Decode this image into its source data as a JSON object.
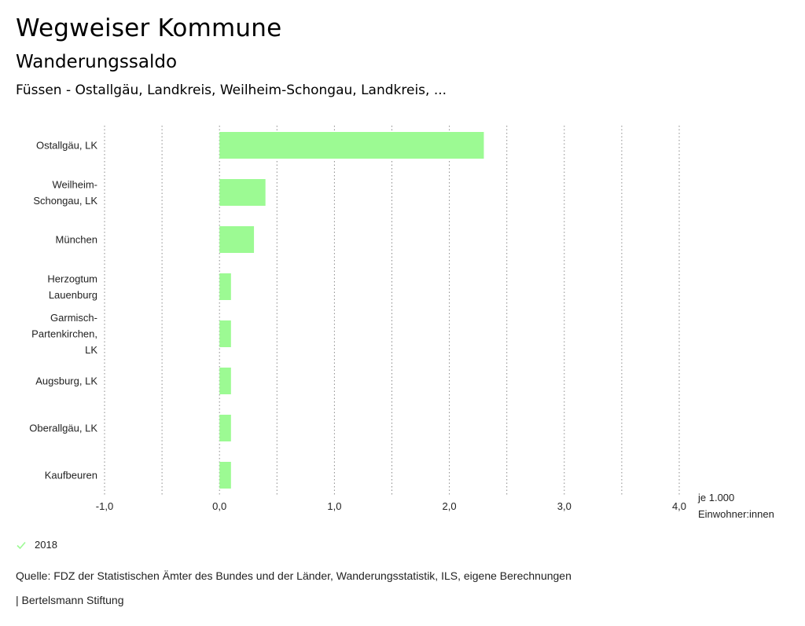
{
  "header": {
    "title": "Wegweiser Kommune",
    "subtitle": "Wanderungssaldo",
    "regions": "Füssen - Ostallgäu, Landkreis, Weilheim-Schongau, Landkreis, ..."
  },
  "chart_data": {
    "type": "bar",
    "orientation": "horizontal",
    "categories": [
      [
        "Ostallgäu, LK"
      ],
      [
        "Weilheim-",
        "Schongau, LK"
      ],
      [
        "München"
      ],
      [
        "Herzogtum",
        "Lauenburg"
      ],
      [
        "Garmisch-",
        "Partenkirchen,",
        "LK"
      ],
      [
        "Augsburg, LK"
      ],
      [
        "Oberallgäu, LK"
      ],
      [
        "Kaufbeuren"
      ]
    ],
    "series": [
      {
        "name": "2018",
        "values": [
          2.3,
          0.4,
          0.3,
          0.1,
          0.1,
          0.1,
          0.1,
          0.1
        ]
      }
    ],
    "xlim": [
      -1.0,
      4.0
    ],
    "ticks": [
      -1.0,
      0.0,
      1.0,
      2.0,
      3.0,
      4.0
    ],
    "tick_labels": [
      "-1,0",
      "0,0",
      "1,0",
      "2,0",
      "3,0",
      "4,0"
    ],
    "xlabel": [
      "je 1.000",
      "Einwohner:innen"
    ],
    "grid": true,
    "bar_color": "#9cfa93"
  },
  "legend": {
    "label": "2018",
    "color": "#9cfa93"
  },
  "footer": {
    "source": "Quelle: FDZ der Statistischen Ämter des Bundes und der Länder, Wanderungsstatistik, ILS, eigene Berechnungen",
    "credit": "| Bertelsmann Stiftung"
  }
}
